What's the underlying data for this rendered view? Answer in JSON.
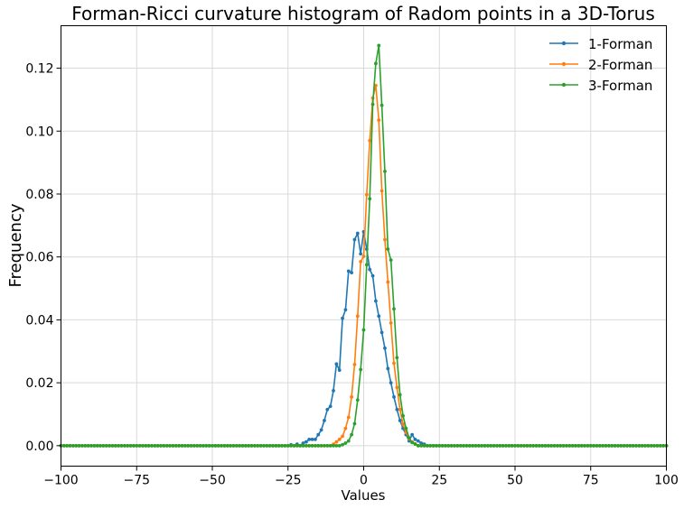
{
  "chart_data": {
    "type": "line",
    "title": "Forman-Ricci curvature histogram of Radom points in a 3D-Torus",
    "xlabel": "Values",
    "ylabel": "Frequency",
    "xlim": [
      -100,
      100
    ],
    "ylim": [
      -0.0065,
      0.1335
    ],
    "xticks": [
      -100,
      -75,
      -50,
      -25,
      0,
      25,
      50,
      75,
      100
    ],
    "yticks": [
      0.0,
      0.02,
      0.04,
      0.06,
      0.08,
      0.1,
      0.12
    ],
    "xtick_labels": [
      "−100",
      "−75",
      "−50",
      "−25",
      "0",
      "25",
      "50",
      "75",
      "100"
    ],
    "ytick_labels": [
      "0.00",
      "0.02",
      "0.04",
      "0.06",
      "0.08",
      "0.10",
      "0.12"
    ],
    "grid": true,
    "legend_position": "top-right",
    "series": [
      {
        "name": "1-Forman",
        "color": "#1f77b4",
        "points": [
          [
            -24,
            0.0003
          ],
          [
            -22,
            0.0005
          ],
          [
            -20,
            0.0008
          ],
          [
            -19,
            0.0012
          ],
          [
            -18,
            0.002
          ],
          [
            -17,
            0.002
          ],
          [
            -16,
            0.002
          ],
          [
            -15,
            0.0035
          ],
          [
            -14,
            0.005
          ],
          [
            -13,
            0.008
          ],
          [
            -12,
            0.0115
          ],
          [
            -11,
            0.0125
          ],
          [
            -10,
            0.0175
          ],
          [
            -9,
            0.026
          ],
          [
            -8,
            0.024
          ],
          [
            -7,
            0.0405
          ],
          [
            -6,
            0.0432
          ],
          [
            -5,
            0.0555
          ],
          [
            -4,
            0.055
          ],
          [
            -3,
            0.0655
          ],
          [
            -2,
            0.0675
          ],
          [
            -1,
            0.061
          ],
          [
            0,
            0.068
          ],
          [
            1,
            0.0625
          ],
          [
            2,
            0.056
          ],
          [
            3,
            0.054
          ],
          [
            4,
            0.046
          ],
          [
            5,
            0.0412
          ],
          [
            6,
            0.036
          ],
          [
            7,
            0.031
          ],
          [
            8,
            0.0245
          ],
          [
            9,
            0.02
          ],
          [
            10,
            0.0155
          ],
          [
            11,
            0.0115
          ],
          [
            12,
            0.008
          ],
          [
            13,
            0.0055
          ],
          [
            14,
            0.0035
          ],
          [
            15,
            0.0015
          ],
          [
            16,
            0.0035
          ],
          [
            17,
            0.002
          ],
          [
            18,
            0.0015
          ],
          [
            19,
            0.0008
          ],
          [
            20,
            0.0005
          ]
        ]
      },
      {
        "name": "2-Forman",
        "color": "#ff7f0e",
        "points": [
          [
            -10,
            0.0005
          ],
          [
            -9,
            0.0012
          ],
          [
            -8,
            0.002
          ],
          [
            -7,
            0.003
          ],
          [
            -6,
            0.0055
          ],
          [
            -5,
            0.009
          ],
          [
            -4,
            0.0155
          ],
          [
            -3,
            0.0258
          ],
          [
            -2,
            0.0412
          ],
          [
            -1,
            0.0585
          ],
          [
            0,
            0.0602
          ],
          [
            1,
            0.0798
          ],
          [
            2,
            0.097
          ],
          [
            3,
            0.1105
          ],
          [
            4,
            0.1145
          ],
          [
            5,
            0.1035
          ],
          [
            6,
            0.081
          ],
          [
            7,
            0.0655
          ],
          [
            8,
            0.052
          ],
          [
            9,
            0.039
          ],
          [
            10,
            0.0262
          ],
          [
            11,
            0.0185
          ],
          [
            12,
            0.0115
          ],
          [
            13,
            0.0068
          ],
          [
            14,
            0.0042
          ],
          [
            15,
            0.0022
          ],
          [
            16,
            0.0012
          ],
          [
            17,
            0.0006
          ]
        ]
      },
      {
        "name": "3-Forman",
        "color": "#2ca02c",
        "points": [
          [
            -7,
            0.0003
          ],
          [
            -6,
            0.0008
          ],
          [
            -5,
            0.0015
          ],
          [
            -4,
            0.0035
          ],
          [
            -3,
            0.007
          ],
          [
            -2,
            0.0145
          ],
          [
            -1,
            0.0242
          ],
          [
            0,
            0.0368
          ],
          [
            1,
            0.0575
          ],
          [
            2,
            0.0785
          ],
          [
            3,
            0.1085
          ],
          [
            4,
            0.1215
          ],
          [
            5,
            0.1272
          ],
          [
            6,
            0.1082
          ],
          [
            7,
            0.0872
          ],
          [
            8,
            0.0625
          ],
          [
            9,
            0.059
          ],
          [
            10,
            0.0435
          ],
          [
            11,
            0.028
          ],
          [
            12,
            0.0162
          ],
          [
            13,
            0.0095
          ],
          [
            14,
            0.0055
          ],
          [
            15,
            0.0025
          ],
          [
            16,
            0.001
          ],
          [
            17,
            0.0005
          ]
        ]
      }
    ]
  }
}
